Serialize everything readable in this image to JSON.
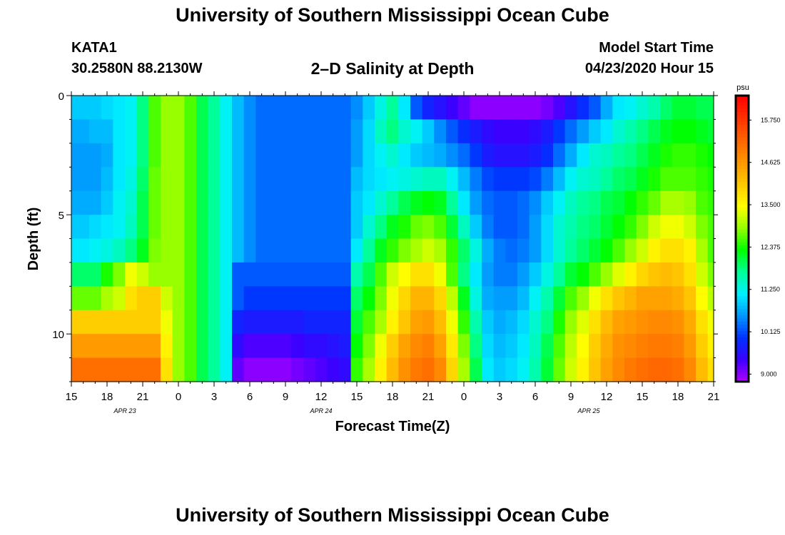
{
  "header": {
    "title": "University of Southern Mississippi Ocean Cube",
    "station_id": "KATA1",
    "coordinates": "30.2580N 88.2130W",
    "subtitle": "2–D Salinity at Depth",
    "model_start_label": "Model Start Time",
    "model_start_value": "04/23/2020 Hour 15"
  },
  "footer": {
    "title": "University of Southern Mississippi Ocean Cube"
  },
  "chart_data": {
    "type": "heatmap",
    "title": "2–D Salinity at Depth",
    "xlabel": "Forecast Time(Z)",
    "ylabel": "Depth (ft)",
    "x_tick_labels": [
      "15",
      "18",
      "21",
      "0",
      "3",
      "6",
      "9",
      "12",
      "15",
      "18",
      "21",
      "0",
      "3",
      "6",
      "9",
      "12",
      "15",
      "18",
      "21"
    ],
    "x_hours_since_start": [
      0,
      3,
      6,
      9,
      12,
      15,
      18,
      21,
      24,
      27,
      30,
      33,
      36,
      39,
      42,
      45,
      48,
      51,
      54
    ],
    "date_labels": [
      {
        "text": "APR 23",
        "hour": 4.5
      },
      {
        "text": "APR 24",
        "hour": 21
      },
      {
        "text": "APR 25",
        "hour": 43.5
      }
    ],
    "xlim": [
      0,
      54
    ],
    "y_tick_labels": [
      "0",
      "5",
      "10"
    ],
    "y_ticks": [
      0,
      5,
      10
    ],
    "ylim": [
      0,
      12
    ],
    "y_inverted": true,
    "grid": false,
    "time_step_hours": 1,
    "depths_ft": [
      0.5,
      1.5,
      2.5,
      3.5,
      4.5,
      5.5,
      6.5,
      7.5,
      8.5,
      9.5,
      10.5,
      11.5
    ],
    "colorbar": {
      "unit": "psu",
      "min": 8.8,
      "max": 16.4,
      "tick_labels": [
        "9.000",
        "10.125",
        "11.250",
        "12.375",
        "13.500",
        "14.625",
        "15.750"
      ],
      "ticks": [
        9.0,
        10.125,
        11.25,
        12.375,
        13.5,
        14.625,
        15.75
      ],
      "colors": [
        "#b400ff",
        "#3c00ff",
        "#0032ff",
        "#0096ff",
        "#00f0ff",
        "#00ff96",
        "#00ff00",
        "#96ff00",
        "#ffff00",
        "#ffc800",
        "#ff9600",
        "#ff6400",
        "#ff3200",
        "#ff0000"
      ]
    },
    "values_psu": [
      [
        10.9,
        10.9,
        10.9,
        11.0,
        11.1,
        11.2,
        11.8,
        12.6,
        12.9,
        12.9,
        12.6,
        12.0,
        11.7,
        11.2,
        10.8,
        10.5,
        10.3,
        10.3,
        10.3,
        10.3,
        10.3,
        10.3,
        10.3,
        10.3,
        10.5,
        10.9,
        11.3,
        11.7,
        11.1,
        10.2,
        9.8,
        9.6,
        9.4,
        9.2,
        9.0,
        9.0,
        9.0,
        9.0,
        9.0,
        9.0,
        9.1,
        9.3,
        9.6,
        9.9,
        10.2,
        10.7,
        11.1,
        11.2,
        11.4,
        11.6,
        11.9,
        12.1,
        12.1,
        12.0,
        12.0
      ],
      [
        10.7,
        10.7,
        10.8,
        10.8,
        11.1,
        11.2,
        11.8,
        12.6,
        12.9,
        12.9,
        12.6,
        12.0,
        11.7,
        11.2,
        10.8,
        10.5,
        10.3,
        10.3,
        10.3,
        10.3,
        10.3,
        10.3,
        10.3,
        10.3,
        10.6,
        11.0,
        11.5,
        11.8,
        11.4,
        11.2,
        10.9,
        10.5,
        10.2,
        9.9,
        9.7,
        9.5,
        9.4,
        9.4,
        9.4,
        9.5,
        9.7,
        10.0,
        10.3,
        10.6,
        10.9,
        11.1,
        11.4,
        11.6,
        11.8,
        12.0,
        12.2,
        12.3,
        12.3,
        12.2,
        12.1
      ],
      [
        10.6,
        10.6,
        10.6,
        10.7,
        11.1,
        11.2,
        11.8,
        12.6,
        12.9,
        12.9,
        12.6,
        12.0,
        11.7,
        11.2,
        10.8,
        10.5,
        10.3,
        10.3,
        10.3,
        10.3,
        10.3,
        10.3,
        10.3,
        10.3,
        10.6,
        11.0,
        11.2,
        11.4,
        11.1,
        10.9,
        10.8,
        10.7,
        10.5,
        10.3,
        10.0,
        9.7,
        9.6,
        9.6,
        9.6,
        9.7,
        9.9,
        10.3,
        10.7,
        11.1,
        11.4,
        11.5,
        11.7,
        11.8,
        12.0,
        12.2,
        12.4,
        12.5,
        12.5,
        12.4,
        12.3
      ],
      [
        10.6,
        10.6,
        10.6,
        10.8,
        11.1,
        11.3,
        11.9,
        12.7,
        12.9,
        12.9,
        12.6,
        12.0,
        11.7,
        11.2,
        10.8,
        10.5,
        10.3,
        10.3,
        10.3,
        10.3,
        10.3,
        10.3,
        10.3,
        10.3,
        10.8,
        11.0,
        11.1,
        11.2,
        11.3,
        11.4,
        11.5,
        11.5,
        11.2,
        10.8,
        10.4,
        10.1,
        10.0,
        10.0,
        10.0,
        10.1,
        10.4,
        10.8,
        11.2,
        11.4,
        11.5,
        11.7,
        11.9,
        12.0,
        12.2,
        12.4,
        12.6,
        12.6,
        12.6,
        12.5,
        12.4
      ],
      [
        10.7,
        10.7,
        10.7,
        10.9,
        11.2,
        11.4,
        12.0,
        12.7,
        12.9,
        12.9,
        12.6,
        12.0,
        11.7,
        11.2,
        10.8,
        10.5,
        10.3,
        10.3,
        10.3,
        10.3,
        10.3,
        10.3,
        10.3,
        10.3,
        10.9,
        11.1,
        11.4,
        11.7,
        12.0,
        12.2,
        12.3,
        12.2,
        11.7,
        11.1,
        10.6,
        10.3,
        10.2,
        10.2,
        10.3,
        10.5,
        10.9,
        11.2,
        11.5,
        11.7,
        11.8,
        12.0,
        12.1,
        12.3,
        12.5,
        12.7,
        13.0,
        13.0,
        12.9,
        12.6,
        12.5
      ],
      [
        10.9,
        10.9,
        11.0,
        11.1,
        11.2,
        11.5,
        12.0,
        12.7,
        12.9,
        12.9,
        12.6,
        12.0,
        11.7,
        11.2,
        10.8,
        10.5,
        10.3,
        10.3,
        10.3,
        10.3,
        10.3,
        10.3,
        10.3,
        10.3,
        10.9,
        11.4,
        11.8,
        12.2,
        12.4,
        12.7,
        12.8,
        12.6,
        12.1,
        11.5,
        10.9,
        10.4,
        10.2,
        10.2,
        10.3,
        10.6,
        11.0,
        11.4,
        11.6,
        11.8,
        11.9,
        12.1,
        12.3,
        12.5,
        12.8,
        13.2,
        13.4,
        13.4,
        13.2,
        12.8,
        12.6
      ],
      [
        11.1,
        11.1,
        11.2,
        11.3,
        11.5,
        11.8,
        12.2,
        12.8,
        12.9,
        12.9,
        12.6,
        12.0,
        11.7,
        11.2,
        10.8,
        10.5,
        10.3,
        10.3,
        10.3,
        10.3,
        10.3,
        10.3,
        10.3,
        10.3,
        11.1,
        11.7,
        12.2,
        12.5,
        12.8,
        13.0,
        13.2,
        13.0,
        12.5,
        11.9,
        11.3,
        10.7,
        10.4,
        10.3,
        10.4,
        10.6,
        11.0,
        11.4,
        11.7,
        11.9,
        12.1,
        12.3,
        12.6,
        12.9,
        13.2,
        13.6,
        13.8,
        13.8,
        13.6,
        13.0,
        12.6
      ],
      [
        11.9,
        11.9,
        11.9,
        12.4,
        12.8,
        13.4,
        13.2,
        12.9,
        12.9,
        12.9,
        12.6,
        12.0,
        11.7,
        11.2,
        10.2,
        10.2,
        10.2,
        10.2,
        10.2,
        10.2,
        10.2,
        10.2,
        10.2,
        10.2,
        11.6,
        12.0,
        12.6,
        13.2,
        13.5,
        13.8,
        13.8,
        13.4,
        12.6,
        11.8,
        11.1,
        10.6,
        10.4,
        10.4,
        10.6,
        10.9,
        11.3,
        11.7,
        12.1,
        12.3,
        12.6,
        12.9,
        13.3,
        13.6,
        13.9,
        14.1,
        14.2,
        14.1,
        13.8,
        13.2,
        12.8
      ],
      [
        12.7,
        12.7,
        12.7,
        13.0,
        13.2,
        13.8,
        14.0,
        14.0,
        13.2,
        12.9,
        12.6,
        12.0,
        11.7,
        11.2,
        10.2,
        10.0,
        10.0,
        10.0,
        10.0,
        10.0,
        10.0,
        10.0,
        10.0,
        10.0,
        11.9,
        12.3,
        12.8,
        13.4,
        13.9,
        14.3,
        14.3,
        13.9,
        13.1,
        12.2,
        11.3,
        10.7,
        10.6,
        10.6,
        10.8,
        11.2,
        11.6,
        12.1,
        12.6,
        12.9,
        13.4,
        13.8,
        14.1,
        14.3,
        14.5,
        14.5,
        14.5,
        14.4,
        14.1,
        13.5,
        13.1
      ],
      [
        14.0,
        14.0,
        14.0,
        14.0,
        14.0,
        14.0,
        14.0,
        14.0,
        13.4,
        12.9,
        12.6,
        12.0,
        11.7,
        11.2,
        9.8,
        9.7,
        9.7,
        9.7,
        9.7,
        9.7,
        9.8,
        9.8,
        9.8,
        9.8,
        12.1,
        12.6,
        13.0,
        13.6,
        14.1,
        14.5,
        14.6,
        14.2,
        13.4,
        12.5,
        11.6,
        10.9,
        10.7,
        10.8,
        11.0,
        11.4,
        11.8,
        12.4,
        12.9,
        13.3,
        13.8,
        14.2,
        14.5,
        14.6,
        14.7,
        14.8,
        14.8,
        14.7,
        14.4,
        13.8,
        13.4
      ],
      [
        14.6,
        14.6,
        14.6,
        14.6,
        14.6,
        14.6,
        14.6,
        14.6,
        13.6,
        12.9,
        12.6,
        12.0,
        11.7,
        11.2,
        9.5,
        9.3,
        9.3,
        9.3,
        9.3,
        9.4,
        9.5,
        9.5,
        9.6,
        9.7,
        12.3,
        12.8,
        13.4,
        14.0,
        14.5,
        14.8,
        14.9,
        14.5,
        13.7,
        12.8,
        11.8,
        11.0,
        10.8,
        10.9,
        11.1,
        11.5,
        12.0,
        12.6,
        13.1,
        13.5,
        14.0,
        14.4,
        14.7,
        14.8,
        14.9,
        15.0,
        15.0,
        14.9,
        14.6,
        14.0,
        13.6
      ],
      [
        15.1,
        15.1,
        15.1,
        15.1,
        15.1,
        15.1,
        15.1,
        15.1,
        13.8,
        12.9,
        12.6,
        12.0,
        11.7,
        11.2,
        9.2,
        9.0,
        9.0,
        9.0,
        9.0,
        9.1,
        9.2,
        9.3,
        9.4,
        9.5,
        12.5,
        13.0,
        13.6,
        14.2,
        14.7,
        15.0,
        15.1,
        14.8,
        13.9,
        13.0,
        12.0,
        11.1,
        10.9,
        11.0,
        11.2,
        11.6,
        12.1,
        12.7,
        13.2,
        13.6,
        14.1,
        14.5,
        14.8,
        15.0,
        15.1,
        15.2,
        15.2,
        15.1,
        14.8,
        14.2,
        13.8
      ]
    ]
  }
}
